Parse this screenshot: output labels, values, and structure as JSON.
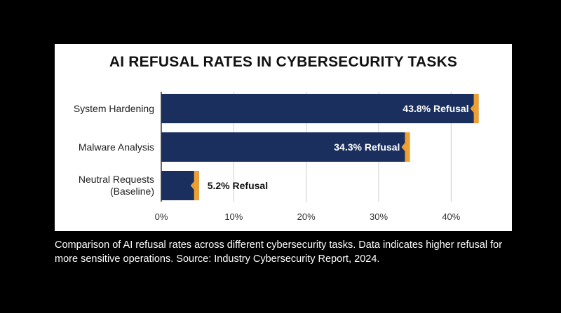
{
  "colors": {
    "background": "#000000",
    "panel": "#ffffff",
    "bar": "#1a2f5e",
    "accent": "#f0a030",
    "gridline": "#cccccc",
    "text": "#111111",
    "caption_text": "#ffffff"
  },
  "chart_data": {
    "type": "bar",
    "orientation": "horizontal",
    "title": "AI REFUSAL RATES IN CYBERSECURITY TASKS",
    "categories": [
      "System Hardening",
      "Malware Analysis",
      "Neutral Requests (Baseline)"
    ],
    "category_lines": [
      [
        "System Hardening"
      ],
      [
        "Malware Analysis"
      ],
      [
        "Neutral Requests",
        "(Baseline)"
      ]
    ],
    "values": [
      43.8,
      34.3,
      5.2
    ],
    "data_labels": [
      "43.8% Refusal",
      "34.3% Refusal",
      "5.2% Refusal"
    ],
    "xlim": [
      0,
      45
    ],
    "xticks": [
      0,
      10,
      20,
      30,
      40
    ],
    "xtick_labels": [
      "0%",
      "10%",
      "20%",
      "30%",
      "40%"
    ],
    "grid": true,
    "xlabel": "",
    "ylabel": ""
  },
  "caption": "Comparison of AI refusal rates across different cybersecurity tasks. Data indicates higher refusal for more sensitive operations. Source: Industry Cybersecurity Report, 2024."
}
